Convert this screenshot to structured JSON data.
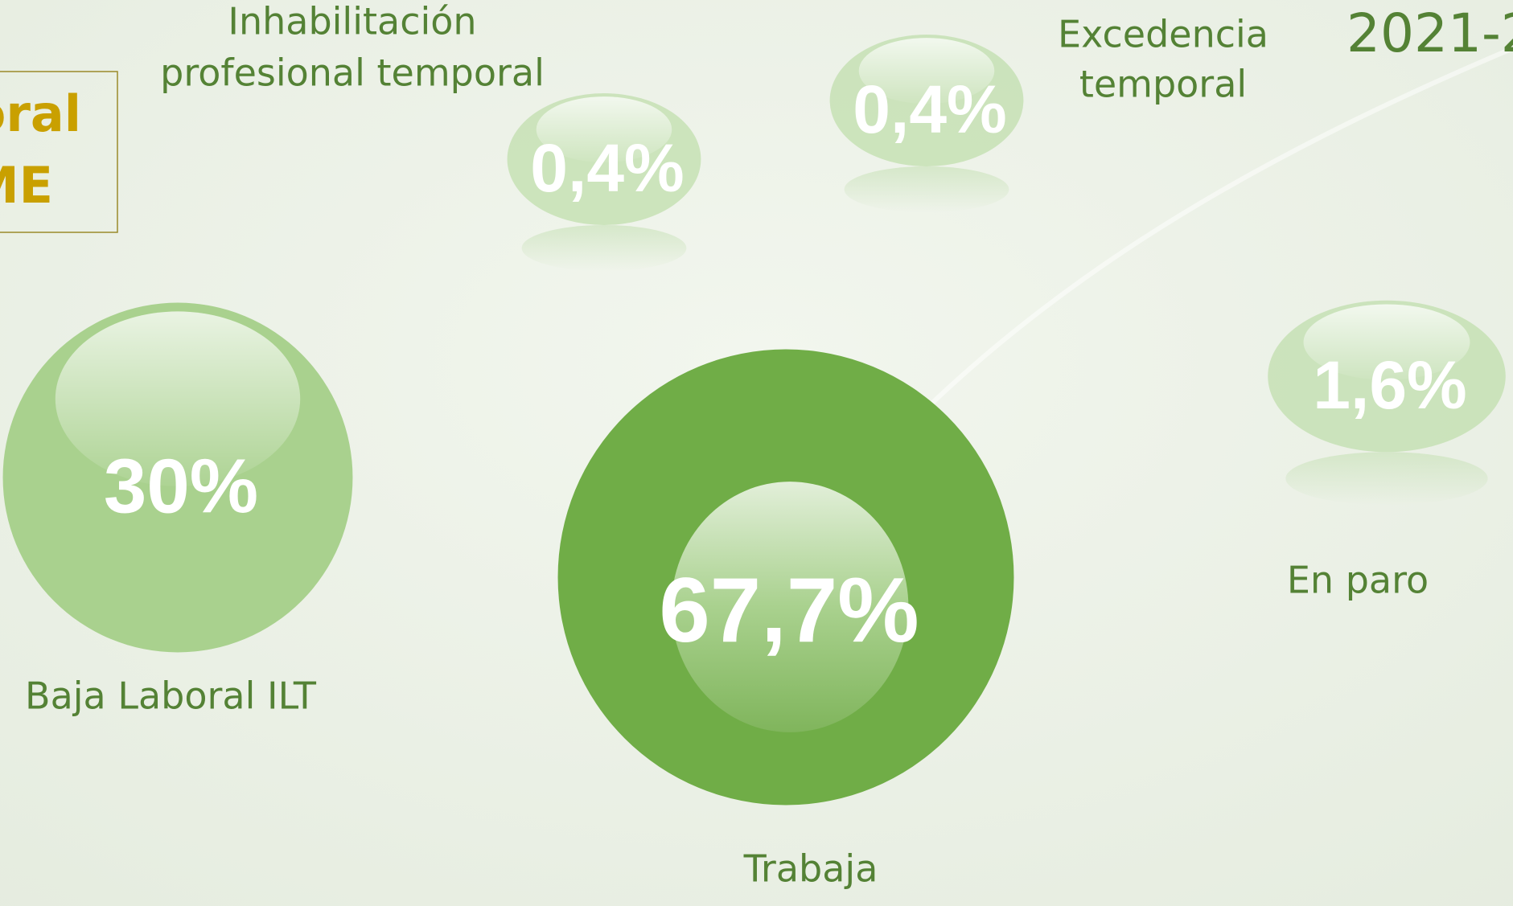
{
  "chart_data": {
    "type": "bubble",
    "title": "2021-2",
    "box_text": [
      "oral",
      "ME"
    ],
    "categories": [
      "Baja Laboral ILT",
      "Trabaja",
      [
        "Inhabilitación",
        "profesional temporal"
      ],
      [
        "Excedencia",
        "temporal"
      ],
      "En paro"
    ],
    "values": [
      30,
      67.7,
      0.4,
      0.4,
      1.6
    ],
    "value_labels": [
      "30%",
      "67,7%",
      "0,4%",
      "0,4%",
      "1,6%"
    ],
    "colors": [
      "#a9d18e",
      "#70ad47",
      "#c5e0b4",
      "#c5e0b4",
      "#c5e0b4"
    ]
  }
}
